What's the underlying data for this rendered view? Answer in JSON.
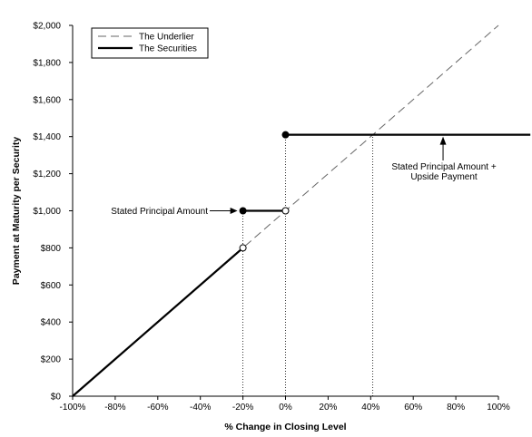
{
  "chart_data": {
    "type": "line",
    "title": "",
    "xlabel": "% Change in Closing Level",
    "ylabel": "Payment at Maturity per Security",
    "xlim": [
      -100,
      100
    ],
    "ylim": [
      0,
      2000
    ],
    "x_ticks": [
      -100,
      -80,
      -60,
      -40,
      -20,
      0,
      20,
      40,
      60,
      80,
      100
    ],
    "x_tick_labels": [
      "-100%",
      "-80%",
      "-60%",
      "-40%",
      "-20%",
      "0%",
      "20%",
      "40%",
      "60%",
      "80%",
      "100%"
    ],
    "y_ticks": [
      0,
      200,
      400,
      600,
      800,
      1000,
      1200,
      1400,
      1600,
      1800,
      2000
    ],
    "y_tick_labels": [
      "$0",
      "$200",
      "$400",
      "$600",
      "$800",
      "$1,000",
      "$1,200",
      "$1,400",
      "$1,600",
      "$1,800",
      "$2,000"
    ],
    "legend_position": "top-left",
    "series": [
      {
        "name": "The Underlier",
        "style": "dashed",
        "color": "#666666",
        "segments": [
          {
            "x": [
              -100,
              100
            ],
            "y": [
              0,
              2000
            ]
          }
        ]
      },
      {
        "name": "The Securities",
        "style": "solid",
        "color": "#000000",
        "segments": [
          {
            "x": [
              -100,
              -20
            ],
            "y": [
              0,
              800
            ]
          },
          {
            "x": [
              -20,
              0
            ],
            "y": [
              1000,
              1000
            ]
          },
          {
            "x": [
              0,
              115
            ],
            "y": [
              1410,
              1410
            ]
          }
        ]
      }
    ],
    "markers": [
      {
        "x": -20,
        "y": 800,
        "fill": "open"
      },
      {
        "x": -20,
        "y": 1000,
        "fill": "filled"
      },
      {
        "x": 0,
        "y": 1000,
        "fill": "open"
      },
      {
        "x": 0,
        "y": 1410,
        "fill": "filled"
      }
    ],
    "reference_lines": [
      {
        "x": -20,
        "y_top": 1000
      },
      {
        "x": 0,
        "y_top": 1410
      },
      {
        "x": 41,
        "y_top": 1410
      }
    ],
    "annotations": [
      {
        "text": "Stated Principal Amount",
        "target_x": -20,
        "target_y": 1000
      },
      {
        "text": "Stated Principal Amount +",
        "line2": "Upside Payment",
        "target_x": 74,
        "target_y": 1410
      }
    ]
  }
}
